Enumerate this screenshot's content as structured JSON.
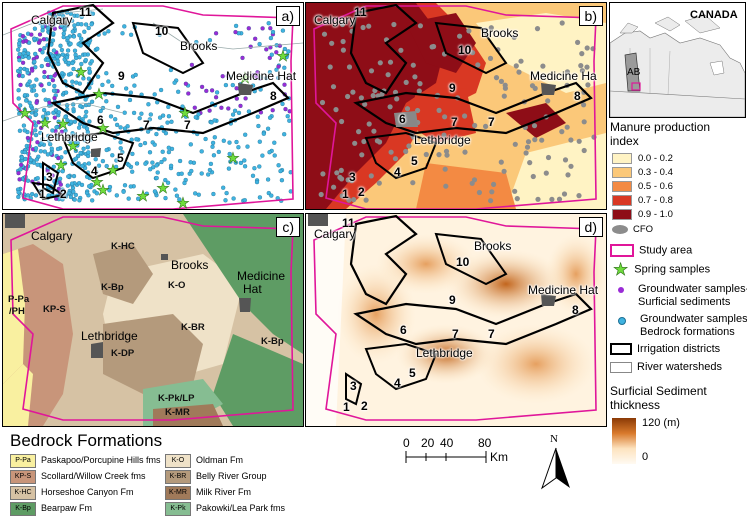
{
  "panels": {
    "a": {
      "label": "a)"
    },
    "b": {
      "label": "b)"
    },
    "c": {
      "label": "c)"
    },
    "d": {
      "label": "d)"
    }
  },
  "cities": {
    "calgary": "Calgary",
    "brooks": "Brooks",
    "medicine_hat": "Medicine Hat",
    "medicine_hat_short": "Medicine Ha",
    "medicine": "Medicine",
    "hat": "Hat",
    "lethbridge": "Lethbridge"
  },
  "districts": [
    "1",
    "2",
    "3",
    "4",
    "5",
    "6",
    "7",
    "8",
    "9",
    "10",
    "11"
  ],
  "geology_labels": {
    "p_pa": "P-Pa",
    "ph": "/PH",
    "kp_s": "KP-S",
    "k_hc": "K-HC",
    "k_bp": "K-Bp",
    "k_o": "K-O",
    "k_br": "K-BR",
    "k_dp": "K-DP",
    "k_pk": "K-Pk/LP",
    "k_mr": "K-MR"
  },
  "inset": {
    "country": "CANADA",
    "province": "AB"
  },
  "manure_legend": {
    "title_line1": "Manure production",
    "title_line2": "index",
    "classes": [
      {
        "label": "0.0 - 0.2",
        "color": "#fff3c4"
      },
      {
        "label": "0.3 - 0.4",
        "color": "#fbc879"
      },
      {
        "label": "0.5 - 0.6",
        "color": "#f38a43"
      },
      {
        "label": "0.7 - 0.8",
        "color": "#d93823"
      },
      {
        "label": "0.9 - 1.0",
        "color": "#8e0d17"
      }
    ],
    "cfo": "CFO"
  },
  "symbol_legend": {
    "study_area": "Study area",
    "spring": "Spring samples",
    "gw_surficial_1": "Groundwater samples-",
    "gw_surficial_2": "Surficial sediments",
    "gw_bedrock_1": "Groundwater samples-",
    "gw_bedrock_2": "Bedrock formations",
    "irrigation": "Irrigation districts",
    "watersheds": "River watersheds"
  },
  "thickness_legend": {
    "title_line1": "Surficial Sediment",
    "title_line2": "thickness",
    "max": "120 (m)",
    "min": "0"
  },
  "bedrock": {
    "title": "Bedrock Formations",
    "items": [
      {
        "code": "P-Pa",
        "name": "Paskapoo/Porcupine Hills fms",
        "color": "#f9f0a0"
      },
      {
        "code": "KP-S",
        "name": "Scollard/Willow Creek fms",
        "color": "#c8957a"
      },
      {
        "code": "K-HC",
        "name": "Horseshoe Canyon Fm",
        "color": "#d6c2a4"
      },
      {
        "code": "K-Bp",
        "name": "Bearpaw Fm",
        "color": "#5e9c64"
      },
      {
        "code": "K-O",
        "name": "Oldman Fm",
        "color": "#efe2c8"
      },
      {
        "code": "K-BR",
        "name": "Belly River Group",
        "color": "#b49a7c"
      },
      {
        "code": "K-MR",
        "name": "Milk River Fm",
        "color": "#a07a5a"
      },
      {
        "code": "K-Pk",
        "name": "Pakowki/Lea Park fms",
        "color": "#86bd92"
      }
    ]
  },
  "scale": {
    "ticks": [
      "0",
      "20",
      "40",
      "80"
    ],
    "unit": "Km"
  },
  "north": "N",
  "colors": {
    "study_area": "#e0169a",
    "spring": "#6fdc3c",
    "gw_surficial": "#9a2bd6",
    "gw_bedrock": "#3fb3e0"
  }
}
